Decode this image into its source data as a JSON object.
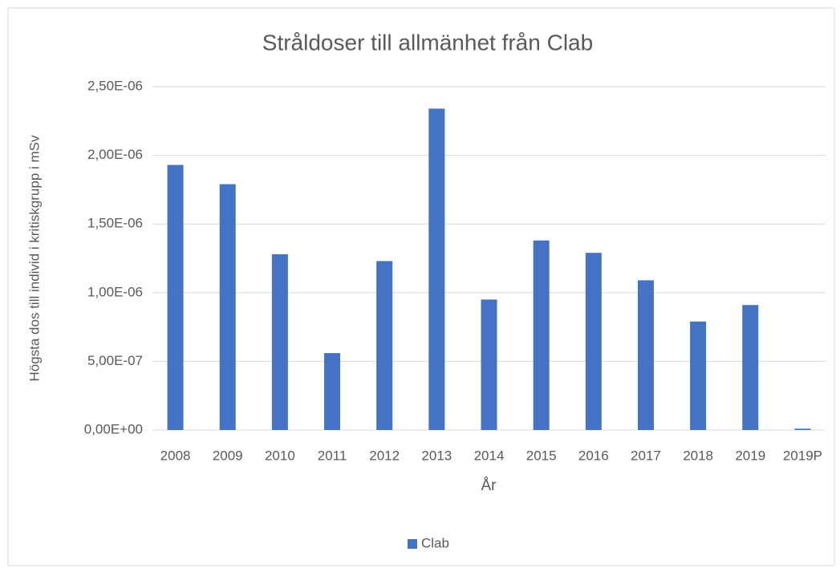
{
  "chart_data": {
    "type": "bar",
    "title": "Stråldoser till allmänhet från Clab",
    "x_label": "År",
    "y_label": "Högsta dos till individ i kritiskgrupp i mSv",
    "categories": [
      "2008",
      "2009",
      "2010",
      "2011",
      "2012",
      "2013",
      "2014",
      "2015",
      "2016",
      "2017",
      "2018",
      "2019",
      "2019P"
    ],
    "series": [
      {
        "name": "Clab",
        "color": "#4472c4",
        "values": [
          1.93e-06,
          1.79e-06,
          1.28e-06,
          5.6e-07,
          1.23e-06,
          2.34e-06,
          9.5e-07,
          1.38e-06,
          1.29e-06,
          1.09e-06,
          7.9e-07,
          9.1e-07,
          1e-08
        ]
      }
    ],
    "ylim": [
      0,
      2.5e-06
    ],
    "yticks": [
      {
        "value": 0,
        "label": "0,00E+00"
      },
      {
        "value": 5e-07,
        "label": "5,00E-07"
      },
      {
        "value": 1e-06,
        "label": "1,00E-06"
      },
      {
        "value": 1.5e-06,
        "label": "1,50E-06"
      },
      {
        "value": 2e-06,
        "label": "2,00E-06"
      },
      {
        "value": 2.5e-06,
        "label": "2,50E-06"
      }
    ],
    "grid": true,
    "legend": "bottom"
  }
}
